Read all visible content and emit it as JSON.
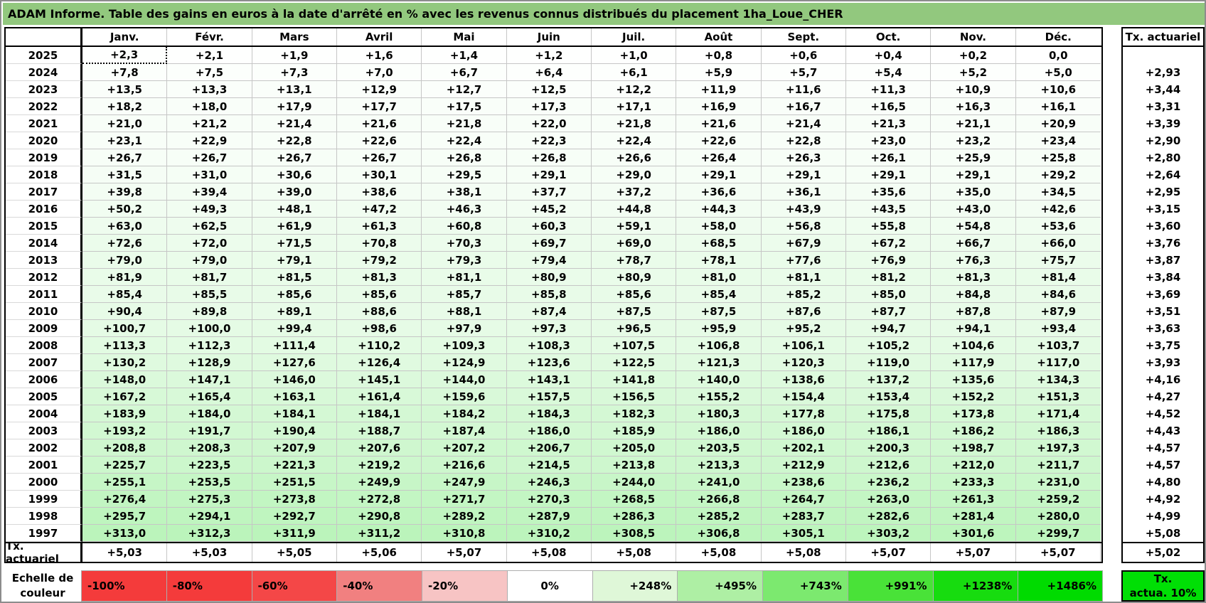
{
  "title": "ADAM Informe. Table des gains en euros à la date d'arrêté en % avec les revenus connus distribués du placement 1ha_Loue_CHER",
  "table": {
    "months": [
      "Janv.",
      "Févr.",
      "Mars",
      "Avril",
      "Mai",
      "Juin",
      "Juil.",
      "Août",
      "Sept.",
      "Oct.",
      "Nov.",
      "Déc."
    ],
    "rows": [
      {
        "year": "2025",
        "values": [
          "+2,3",
          "+2,1",
          "+1,9",
          "+1,6",
          "+1,4",
          "+1,2",
          "+1,0",
          "+0,8",
          "+0,6",
          "+0,4",
          "+0,2",
          "0,0"
        ],
        "tx": ""
      },
      {
        "year": "2024",
        "values": [
          "+7,8",
          "+7,5",
          "+7,3",
          "+7,0",
          "+6,7",
          "+6,4",
          "+6,1",
          "+5,9",
          "+5,7",
          "+5,4",
          "+5,2",
          "+5,0"
        ],
        "tx": "+2,93"
      },
      {
        "year": "2023",
        "values": [
          "+13,5",
          "+13,3",
          "+13,1",
          "+12,9",
          "+12,7",
          "+12,5",
          "+12,2",
          "+11,9",
          "+11,6",
          "+11,3",
          "+10,9",
          "+10,6"
        ],
        "tx": "+3,44"
      },
      {
        "year": "2022",
        "values": [
          "+18,2",
          "+18,0",
          "+17,9",
          "+17,7",
          "+17,5",
          "+17,3",
          "+17,1",
          "+16,9",
          "+16,7",
          "+16,5",
          "+16,3",
          "+16,1"
        ],
        "tx": "+3,31"
      },
      {
        "year": "2021",
        "values": [
          "+21,0",
          "+21,2",
          "+21,4",
          "+21,6",
          "+21,8",
          "+22,0",
          "+21,8",
          "+21,6",
          "+21,4",
          "+21,3",
          "+21,1",
          "+20,9"
        ],
        "tx": "+3,39"
      },
      {
        "year": "2020",
        "values": [
          "+23,1",
          "+22,9",
          "+22,8",
          "+22,6",
          "+22,4",
          "+22,3",
          "+22,4",
          "+22,6",
          "+22,8",
          "+23,0",
          "+23,2",
          "+23,4"
        ],
        "tx": "+2,90"
      },
      {
        "year": "2019",
        "values": [
          "+26,7",
          "+26,7",
          "+26,7",
          "+26,7",
          "+26,8",
          "+26,8",
          "+26,6",
          "+26,4",
          "+26,3",
          "+26,1",
          "+25,9",
          "+25,8"
        ],
        "tx": "+2,80"
      },
      {
        "year": "2018",
        "values": [
          "+31,5",
          "+31,0",
          "+30,6",
          "+30,1",
          "+29,5",
          "+29,1",
          "+29,0",
          "+29,1",
          "+29,1",
          "+29,1",
          "+29,1",
          "+29,2"
        ],
        "tx": "+2,64"
      },
      {
        "year": "2017",
        "values": [
          "+39,8",
          "+39,4",
          "+39,0",
          "+38,6",
          "+38,1",
          "+37,7",
          "+37,2",
          "+36,6",
          "+36,1",
          "+35,6",
          "+35,0",
          "+34,5"
        ],
        "tx": "+2,95"
      },
      {
        "year": "2016",
        "values": [
          "+50,2",
          "+49,3",
          "+48,1",
          "+47,2",
          "+46,3",
          "+45,2",
          "+44,8",
          "+44,3",
          "+43,9",
          "+43,5",
          "+43,0",
          "+42,6"
        ],
        "tx": "+3,15"
      },
      {
        "year": "2015",
        "values": [
          "+63,0",
          "+62,5",
          "+61,9",
          "+61,3",
          "+60,8",
          "+60,3",
          "+59,1",
          "+58,0",
          "+56,8",
          "+55,8",
          "+54,8",
          "+53,6"
        ],
        "tx": "+3,60"
      },
      {
        "year": "2014",
        "values": [
          "+72,6",
          "+72,0",
          "+71,5",
          "+70,8",
          "+70,3",
          "+69,7",
          "+69,0",
          "+68,5",
          "+67,9",
          "+67,2",
          "+66,7",
          "+66,0"
        ],
        "tx": "+3,76"
      },
      {
        "year": "2013",
        "values": [
          "+79,0",
          "+79,0",
          "+79,1",
          "+79,2",
          "+79,3",
          "+79,4",
          "+78,7",
          "+78,1",
          "+77,6",
          "+76,9",
          "+76,3",
          "+75,7"
        ],
        "tx": "+3,87"
      },
      {
        "year": "2012",
        "values": [
          "+81,9",
          "+81,7",
          "+81,5",
          "+81,3",
          "+81,1",
          "+80,9",
          "+80,9",
          "+81,0",
          "+81,1",
          "+81,2",
          "+81,3",
          "+81,4"
        ],
        "tx": "+3,84"
      },
      {
        "year": "2011",
        "values": [
          "+85,4",
          "+85,5",
          "+85,6",
          "+85,6",
          "+85,7",
          "+85,8",
          "+85,6",
          "+85,4",
          "+85,2",
          "+85,0",
          "+84,8",
          "+84,6"
        ],
        "tx": "+3,69"
      },
      {
        "year": "2010",
        "values": [
          "+90,4",
          "+89,8",
          "+89,1",
          "+88,6",
          "+88,1",
          "+87,4",
          "+87,5",
          "+87,5",
          "+87,6",
          "+87,7",
          "+87,8",
          "+87,9"
        ],
        "tx": "+3,51"
      },
      {
        "year": "2009",
        "values": [
          "+100,7",
          "+100,0",
          "+99,4",
          "+98,6",
          "+97,9",
          "+97,3",
          "+96,5",
          "+95,9",
          "+95,2",
          "+94,7",
          "+94,1",
          "+93,4"
        ],
        "tx": "+3,63"
      },
      {
        "year": "2008",
        "values": [
          "+113,3",
          "+112,3",
          "+111,4",
          "+110,2",
          "+109,3",
          "+108,3",
          "+107,5",
          "+106,8",
          "+106,1",
          "+105,2",
          "+104,6",
          "+103,7"
        ],
        "tx": "+3,75"
      },
      {
        "year": "2007",
        "values": [
          "+130,2",
          "+128,9",
          "+127,6",
          "+126,4",
          "+124,9",
          "+123,6",
          "+122,5",
          "+121,3",
          "+120,3",
          "+119,0",
          "+117,9",
          "+117,0"
        ],
        "tx": "+3,93"
      },
      {
        "year": "2006",
        "values": [
          "+148,0",
          "+147,1",
          "+146,0",
          "+145,1",
          "+144,0",
          "+143,1",
          "+141,8",
          "+140,0",
          "+138,6",
          "+137,2",
          "+135,6",
          "+134,3"
        ],
        "tx": "+4,16"
      },
      {
        "year": "2005",
        "values": [
          "+167,2",
          "+165,4",
          "+163,1",
          "+161,4",
          "+159,6",
          "+157,5",
          "+156,5",
          "+155,2",
          "+154,4",
          "+153,4",
          "+152,2",
          "+151,3"
        ],
        "tx": "+4,27"
      },
      {
        "year": "2004",
        "values": [
          "+183,9",
          "+184,0",
          "+184,1",
          "+184,1",
          "+184,2",
          "+184,3",
          "+182,3",
          "+180,3",
          "+177,8",
          "+175,8",
          "+173,8",
          "+171,4"
        ],
        "tx": "+4,52"
      },
      {
        "year": "2003",
        "values": [
          "+193,2",
          "+191,7",
          "+190,4",
          "+188,7",
          "+187,4",
          "+186,0",
          "+185,9",
          "+186,0",
          "+186,0",
          "+186,1",
          "+186,2",
          "+186,3"
        ],
        "tx": "+4,43"
      },
      {
        "year": "2002",
        "values": [
          "+208,8",
          "+208,3",
          "+207,9",
          "+207,6",
          "+207,2",
          "+206,7",
          "+205,0",
          "+203,5",
          "+202,1",
          "+200,3",
          "+198,7",
          "+197,3"
        ],
        "tx": "+4,57"
      },
      {
        "year": "2001",
        "values": [
          "+225,7",
          "+223,5",
          "+221,3",
          "+219,2",
          "+216,6",
          "+214,5",
          "+213,8",
          "+213,3",
          "+212,9",
          "+212,6",
          "+212,0",
          "+211,7"
        ],
        "tx": "+4,57"
      },
      {
        "year": "2000",
        "values": [
          "+255,1",
          "+253,5",
          "+251,5",
          "+249,9",
          "+247,9",
          "+246,3",
          "+244,0",
          "+241,0",
          "+238,6",
          "+236,2",
          "+233,3",
          "+231,0"
        ],
        "tx": "+4,80"
      },
      {
        "year": "1999",
        "values": [
          "+276,4",
          "+275,3",
          "+273,8",
          "+272,8",
          "+271,7",
          "+270,3",
          "+268,5",
          "+266,8",
          "+264,7",
          "+263,0",
          "+261,3",
          "+259,2"
        ],
        "tx": "+4,92"
      },
      {
        "year": "1998",
        "values": [
          "+295,7",
          "+294,1",
          "+292,7",
          "+290,8",
          "+289,2",
          "+287,9",
          "+286,3",
          "+285,2",
          "+283,7",
          "+282,6",
          "+281,4",
          "+280,0"
        ],
        "tx": "+4,99"
      },
      {
        "year": "1997",
        "values": [
          "+313,0",
          "+312,3",
          "+311,9",
          "+311,2",
          "+310,8",
          "+310,2",
          "+308,5",
          "+306,8",
          "+305,1",
          "+303,2",
          "+301,6",
          "+299,7"
        ],
        "tx": "+5,08"
      }
    ],
    "summary_row": {
      "label": "Tx. actuariel",
      "values": [
        "+5,03",
        "+5,03",
        "+5,05",
        "+5,06",
        "+5,07",
        "+5,08",
        "+5,08",
        "+5,08",
        "+5,08",
        "+5,07",
        "+5,07",
        "+5,07"
      ]
    }
  },
  "right_column": {
    "header": "Tx. actuariel",
    "summary": "+5,02"
  },
  "scale": {
    "label_line1": "Echelle de",
    "label_line2": "couleur",
    "cells": [
      {
        "label": "-100%",
        "color": "#F43B3B",
        "align": "left"
      },
      {
        "label": "-80%",
        "color": "#F43B3B",
        "align": "left"
      },
      {
        "label": "-60%",
        "color": "#F44747",
        "align": "left"
      },
      {
        "label": "-40%",
        "color": "#F18080",
        "align": "left"
      },
      {
        "label": "-20%",
        "color": "#F7C4C4",
        "align": "left"
      },
      {
        "label": "0%",
        "color": "#FFFFFF",
        "align": "center"
      },
      {
        "label": "+248%",
        "color": "#DFF7D8",
        "align": "right"
      },
      {
        "label": "+495%",
        "color": "#AEEFA4",
        "align": "right"
      },
      {
        "label": "+743%",
        "color": "#7CE96F",
        "align": "right"
      },
      {
        "label": "+991%",
        "color": "#49E238",
        "align": "right"
      },
      {
        "label": "+1238%",
        "color": "#17DC0F",
        "align": "right"
      },
      {
        "label": "+1486%",
        "color": "#00DB00",
        "align": "right"
      }
    ],
    "right_box": {
      "line1": "Tx.",
      "line2": "actua. 10%",
      "color": "#00DF05"
    }
  },
  "colors": {
    "title_bg": "#92C87E",
    "scale_max_value": 1486
  },
  "selection": {
    "year": "2025",
    "month": "Janv."
  }
}
